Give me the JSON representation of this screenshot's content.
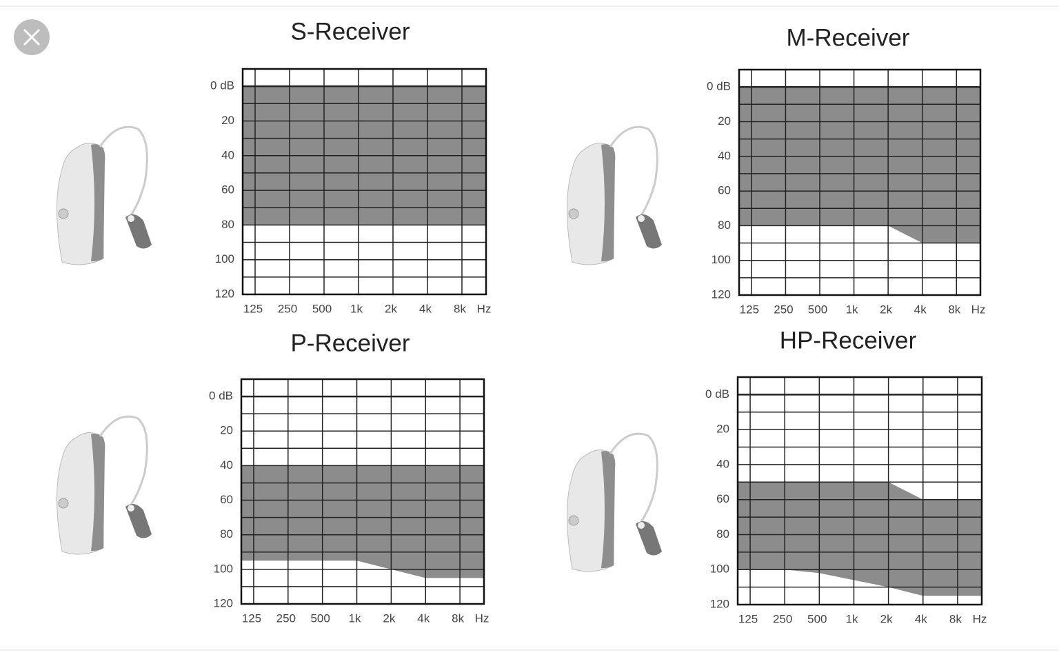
{
  "chart_data": [
    {
      "type": "range",
      "title": "S-Receiver",
      "categories": [
        "125",
        "250",
        "500",
        "1k",
        "2k",
        "4k",
        "8k"
      ],
      "x_unit": "Hz",
      "range_top": [
        0,
        0,
        0,
        0,
        0,
        0,
        0
      ],
      "range_bottom": [
        80,
        80,
        80,
        80,
        80,
        80,
        80
      ],
      "color": "#8c8c8c",
      "ylim": [
        -10,
        120
      ],
      "y_inverted": true,
      "yticks": [
        {
          "value": 0,
          "label": "0 dB"
        },
        20,
        40,
        60,
        80,
        100,
        120
      ],
      "yminor": [
        10,
        30,
        50,
        70,
        90,
        110
      ],
      "grid": true
    },
    {
      "type": "range",
      "title": "M-Receiver",
      "categories": [
        "125",
        "250",
        "500",
        "1k",
        "2k",
        "4k",
        "8k"
      ],
      "x_unit": "Hz",
      "range_top": [
        0,
        0,
        0,
        0,
        0,
        0,
        0
      ],
      "range_bottom": [
        80,
        80,
        80,
        80,
        80,
        90,
        90
      ],
      "color": "#8c8c8c",
      "ylim": [
        -10,
        120
      ],
      "y_inverted": true,
      "yticks": [
        {
          "value": 0,
          "label": "0 dB"
        },
        20,
        40,
        60,
        80,
        100,
        120
      ],
      "yminor": [
        10,
        30,
        50,
        70,
        90,
        110
      ],
      "grid": true
    },
    {
      "type": "range",
      "title": "P-Receiver",
      "categories": [
        "125",
        "250",
        "500",
        "1k",
        "2k",
        "4k",
        "8k"
      ],
      "x_unit": "Hz",
      "range_top": [
        40,
        40,
        40,
        40,
        40,
        40,
        40
      ],
      "range_bottom": [
        95,
        95,
        95,
        95,
        100,
        105,
        105
      ],
      "color": "#8c8c8c",
      "ylim": [
        -10,
        120
      ],
      "y_inverted": true,
      "yticks": [
        {
          "value": 0,
          "label": "0 dB"
        },
        20,
        40,
        60,
        80,
        100,
        120
      ],
      "yminor": [
        10,
        30,
        50,
        70,
        90,
        110
      ],
      "grid": true
    },
    {
      "type": "range",
      "title": "HP-Receiver",
      "categories": [
        "125",
        "250",
        "500",
        "1k",
        "2k",
        "4k",
        "8k"
      ],
      "x_unit": "Hz",
      "range_top": [
        50,
        50,
        50,
        50,
        50,
        60,
        60
      ],
      "range_bottom": [
        100,
        100,
        102,
        106,
        110,
        115,
        115
      ],
      "color": "#8c8c8c",
      "ylim": [
        -10,
        120
      ],
      "y_inverted": true,
      "yticks": [
        {
          "value": 0,
          "label": "0 dB"
        },
        20,
        40,
        60,
        80,
        100,
        120
      ],
      "yminor": [
        10,
        30,
        50,
        70,
        90,
        110
      ],
      "grid": true
    }
  ]
}
